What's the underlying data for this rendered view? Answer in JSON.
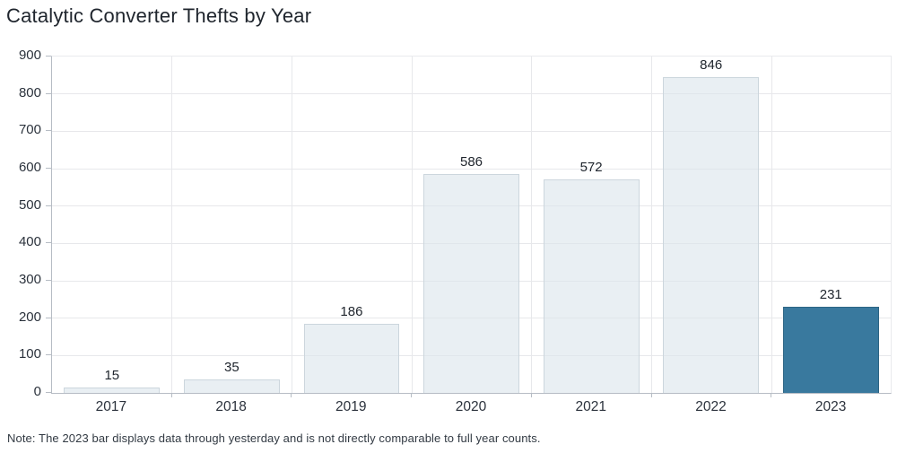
{
  "title": "Catalytic Converter Thefts by Year",
  "note": "Note: The 2023 bar displays data through yesterday and is not directly comparable to full year counts.",
  "chart_data": {
    "type": "bar",
    "title": "Catalytic Converter Thefts by Year",
    "categories": [
      "2017",
      "2018",
      "2019",
      "2020",
      "2021",
      "2022",
      "2023"
    ],
    "values": [
      15,
      35,
      186,
      586,
      572,
      846,
      231
    ],
    "bar_labels": [
      15,
      35,
      186,
      586,
      572,
      846,
      231
    ],
    "xlabel": "",
    "ylabel": "",
    "ylim": [
      0,
      900
    ],
    "ytick_step": 100,
    "yticks": [
      0,
      100,
      200,
      300,
      400,
      500,
      600,
      700,
      800,
      900
    ],
    "grid": "horizontal gridlines at each 100 plus vertical lines at category boundaries",
    "legend": "none",
    "highlight_category": "2023",
    "annotation": "Note: The 2023 bar displays data through yesterday and is not directly comparable to full year counts."
  },
  "colors": {
    "bar_default_fill": "rgba(219,229,235,0.62)",
    "bar_default_border": "#ccd6dd",
    "bar_highlight_fill": "#39799e",
    "bar_highlight_border": "#2d6584",
    "gridline": "#e7e8eb",
    "axis_line": "#b6bcc4",
    "title_text": "#20262e",
    "tick_text": "#2b323c",
    "note_text": "#323a43"
  }
}
